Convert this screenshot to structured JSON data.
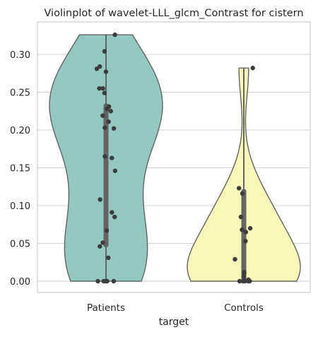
{
  "chart_data": {
    "type": "violin",
    "title": "Violinplot of wavelet-LLL_glcm_Contrast for cistern",
    "xlabel": "target",
    "ylabel": "",
    "categories": [
      "Patients",
      "Controls"
    ],
    "ylim": [
      -0.015,
      0.34
    ],
    "yticks": [
      "0.00",
      "0.05",
      "0.10",
      "0.15",
      "0.20",
      "0.25",
      "0.30"
    ],
    "grid": true,
    "colors": {
      "Patients": "#93c9c0",
      "Controls": "#f7f7b9",
      "outline": "#646464",
      "points": "#3c3c3c",
      "box": "#646464",
      "grid": "#d0d0d0",
      "frame": "#cccccc"
    },
    "groups": [
      {
        "name": "Patients",
        "range": [
          0.0,
          0.326
        ],
        "quartiles": [
          0.045,
          0.165,
          0.235
        ],
        "points": [
          0.0,
          0.0,
          0.0,
          0.0,
          0.0,
          0.031,
          0.046,
          0.051,
          0.067,
          0.085,
          0.091,
          0.108,
          0.146,
          0.163,
          0.165,
          0.202,
          0.203,
          0.211,
          0.219,
          0.225,
          0.228,
          0.231,
          0.249,
          0.255,
          0.255,
          0.277,
          0.281,
          0.284,
          0.304,
          0.326
        ]
      },
      {
        "name": "Controls",
        "range": [
          0.0,
          0.282
        ],
        "quartiles": [
          0.0,
          0.01,
          0.122
        ],
        "points": [
          0.0,
          0.0,
          0.0,
          0.0,
          0.0,
          0.002,
          0.006,
          0.01,
          0.012,
          0.029,
          0.053,
          0.065,
          0.068,
          0.07,
          0.085,
          0.116,
          0.123,
          0.282
        ]
      }
    ]
  }
}
